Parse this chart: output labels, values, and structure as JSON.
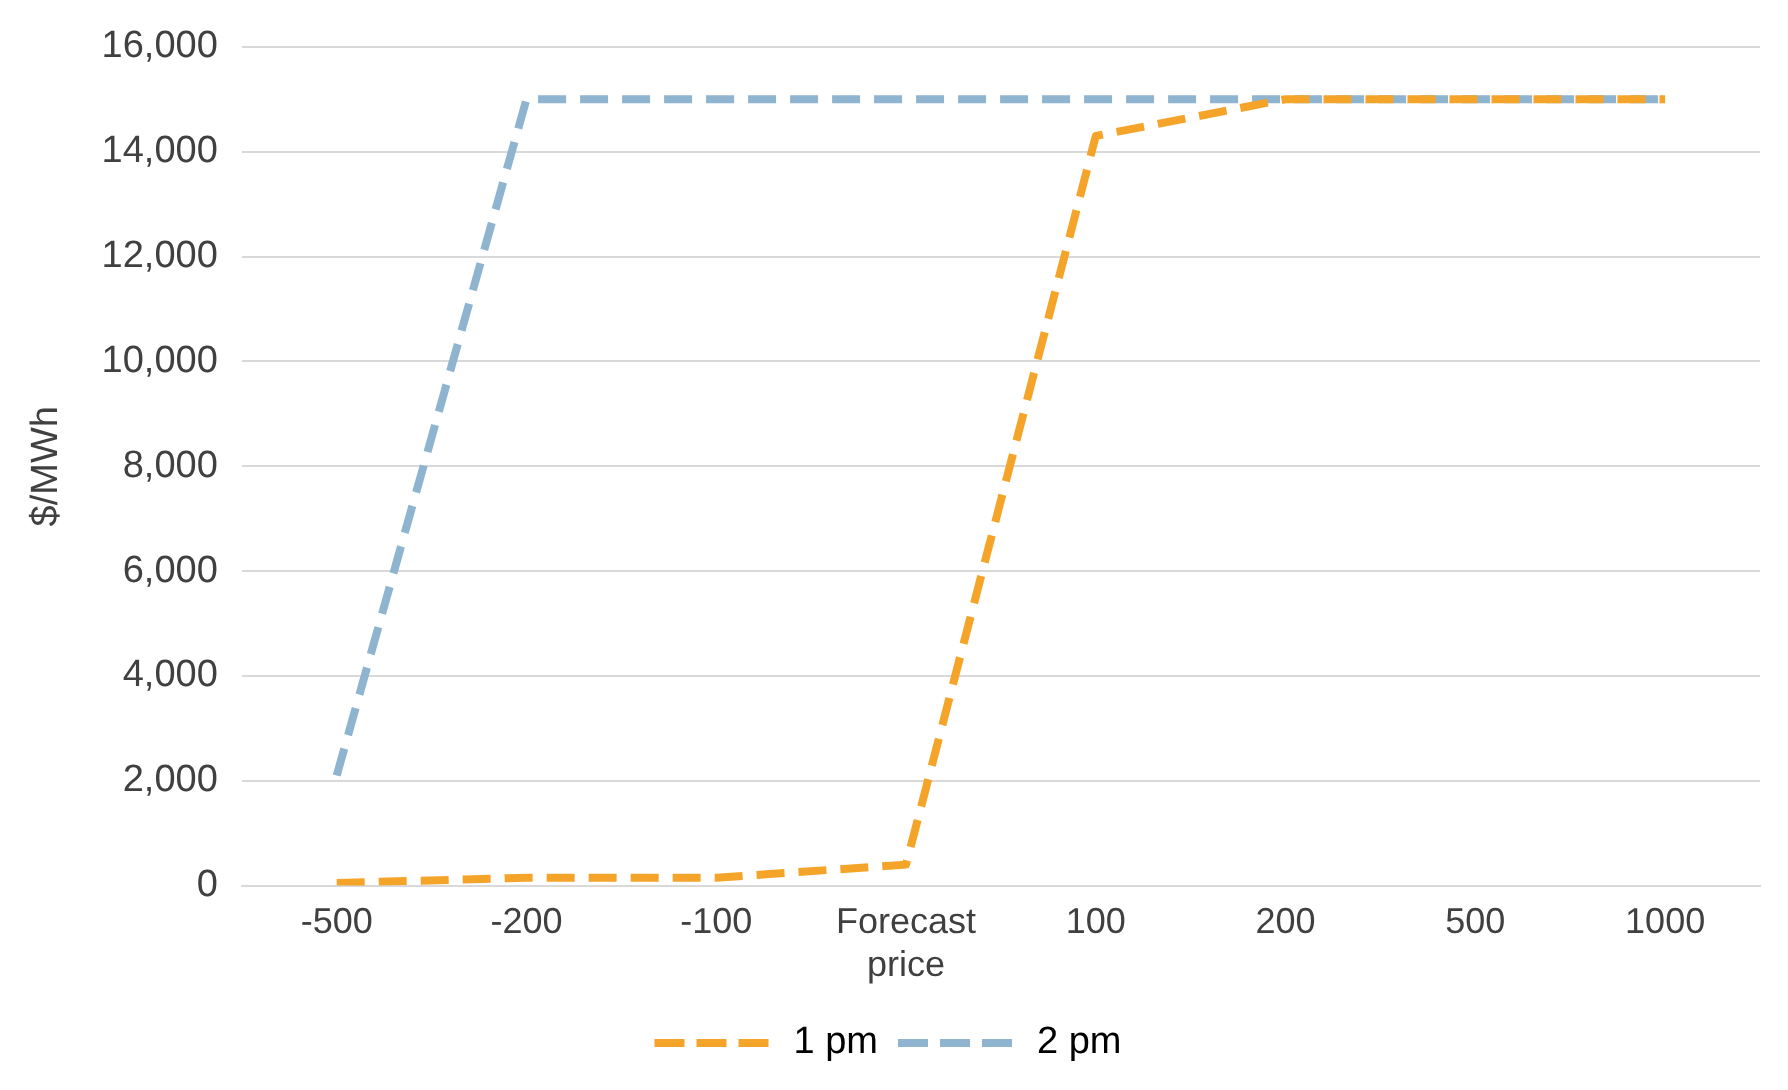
{
  "chart_data": {
    "type": "line",
    "ylabel": "$/MWh",
    "categories": [
      "-500",
      "-200",
      "-100",
      "Forecast price",
      "100",
      "200",
      "500",
      "1000"
    ],
    "series": [
      {
        "name": "1 pm",
        "color": "#f5a42a",
        "values": [
          50,
          150,
          150,
          400,
          14300,
          15000,
          15000,
          15000
        ]
      },
      {
        "name": "2 pm",
        "color": "#8fb4d0",
        "values": [
          2100,
          15000,
          15000,
          15000,
          15000,
          15000,
          15000,
          15000
        ]
      }
    ],
    "ylim": [
      0,
      16000
    ],
    "yticks": [
      0,
      {
        "value": 2000,
        "label": "2,000"
      },
      {
        "value": 4000,
        "label": "4,000"
      },
      {
        "value": 6000,
        "label": "6,000"
      },
      {
        "value": 8000,
        "label": "8,000"
      },
      {
        "value": 10000,
        "label": "10,000"
      },
      {
        "value": 12000,
        "label": "12,000"
      },
      {
        "value": 14000,
        "label": "14,000"
      },
      {
        "value": 16000,
        "label": "16,000"
      }
    ],
    "grid": "y",
    "legend": "bottom",
    "marker": "none",
    "line_style": "dashed"
  }
}
